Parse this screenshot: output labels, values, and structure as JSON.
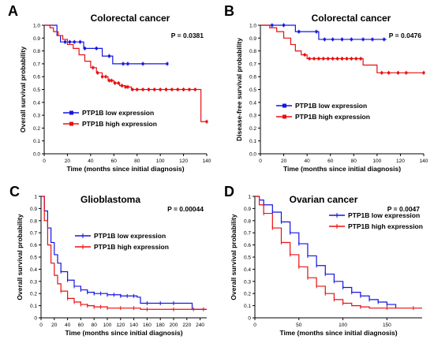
{
  "chart_data": [
    {
      "type": "line",
      "panel": "A",
      "title": "Colorectal cancer",
      "pvalue": "P = 0.0381",
      "xlabel": "Time (months since initial diagnosis)",
      "ylabel": "Overall survival probability",
      "xlim": [
        0,
        140
      ],
      "ylim": [
        0,
        1
      ],
      "xticks": [
        "0",
        "20",
        "40",
        "60",
        "80",
        "100",
        "120",
        "140"
      ],
      "yticks": [
        "0.0",
        "0.1",
        "0.2",
        "0.3",
        "0.4",
        "0.5",
        "0.6",
        "0.7",
        "0.8",
        "0.9",
        "1.0"
      ],
      "legend_position": "lower-left",
      "series": [
        {
          "name": "PTP1B low expression",
          "color": "#1515e0",
          "x": [
            0,
            6,
            11,
            14,
            30,
            34,
            50,
            56,
            59,
            70,
            85,
            106
          ],
          "y": [
            1.0,
            1.0,
            0.92,
            0.87,
            0.87,
            0.82,
            0.76,
            0.76,
            0.7,
            0.7,
            0.7,
            0.7
          ],
          "censor": [
            18,
            22,
            26,
            31,
            35,
            45,
            56,
            68,
            72,
            85,
            106
          ]
        },
        {
          "name": "PTP1B high expression",
          "color": "#e81010",
          "x": [
            0,
            5,
            8,
            12,
            16,
            20,
            25,
            30,
            35,
            40,
            45,
            50,
            55,
            60,
            65,
            70,
            75,
            80,
            90,
            100,
            110,
            120,
            133,
            135,
            140
          ],
          "y": [
            1.0,
            0.98,
            0.95,
            0.92,
            0.89,
            0.85,
            0.82,
            0.77,
            0.72,
            0.67,
            0.63,
            0.6,
            0.57,
            0.55,
            0.53,
            0.52,
            0.5,
            0.5,
            0.5,
            0.5,
            0.5,
            0.5,
            0.5,
            0.25,
            0.25
          ],
          "censor": [
            42,
            46,
            50,
            53,
            56,
            58,
            61,
            64,
            67,
            70,
            72,
            76,
            80,
            85,
            90,
            95,
            100,
            105,
            110,
            115,
            120,
            125,
            130,
            140
          ]
        }
      ]
    },
    {
      "type": "line",
      "panel": "B",
      "title": "Colorectal cancer",
      "pvalue": "P = 0.0476",
      "xlabel": "Time (months since initial diagnosis)",
      "ylabel": "Disease-free survival probability",
      "xlim": [
        0,
        140
      ],
      "ylim": [
        0,
        1
      ],
      "xticks": [
        "0",
        "20",
        "40",
        "60",
        "80",
        "100",
        "120",
        "140"
      ],
      "yticks": [
        "0.0",
        "0.1",
        "0.2",
        "0.3",
        "0.4",
        "0.5",
        "0.6",
        "0.7",
        "0.8",
        "0.9",
        "1.0"
      ],
      "legend_position": "lower-left",
      "series": [
        {
          "name": "PTP1B low expression",
          "color": "#1515e0",
          "x": [
            0,
            14,
            30,
            34,
            50,
            108
          ],
          "y": [
            1.0,
            1.0,
            0.95,
            0.95,
            0.89,
            0.89
          ],
          "censor": [
            10,
            20,
            33,
            48,
            55,
            62,
            70,
            78,
            88,
            96,
            106
          ]
        },
        {
          "name": "PTP1B high expression",
          "color": "#e81010",
          "x": [
            0,
            8,
            14,
            20,
            26,
            30,
            35,
            40,
            60,
            86,
            88,
            96,
            100,
            140
          ],
          "y": [
            1.0,
            0.98,
            0.95,
            0.9,
            0.85,
            0.8,
            0.77,
            0.74,
            0.74,
            0.74,
            0.69,
            0.69,
            0.63,
            0.63
          ],
          "censor": [
            38,
            42,
            46,
            50,
            54,
            58,
            62,
            66,
            70,
            74,
            78,
            82,
            86,
            104,
            110,
            118,
            125,
            140
          ]
        }
      ]
    },
    {
      "type": "line",
      "panel": "C",
      "title": "Glioblastoma",
      "pvalue": "P = 0.00044",
      "xlabel": "Time (months since initial diagnosis)",
      "ylabel": "Overall survival probability",
      "xlim": [
        0,
        250
      ],
      "ylim": [
        0,
        1
      ],
      "xticks": [
        "0",
        "20",
        "40",
        "60",
        "80",
        "100",
        "120",
        "140",
        "160",
        "180",
        "200",
        "220",
        "240"
      ],
      "yticks": [
        "0",
        "0.1",
        "0.2",
        "0.3",
        "0.4",
        "0.5",
        "0.6",
        "0.7",
        "0.8",
        "0.9",
        "1"
      ],
      "legend_position": "center-right",
      "series": [
        {
          "name": "PTP1B low expression",
          "color": "#1515e0",
          "x": [
            0,
            5,
            10,
            15,
            20,
            25,
            30,
            40,
            50,
            60,
            70,
            80,
            100,
            120,
            145,
            150,
            225,
            228,
            250
          ],
          "y": [
            1.0,
            0.88,
            0.74,
            0.62,
            0.52,
            0.45,
            0.38,
            0.31,
            0.26,
            0.23,
            0.21,
            0.2,
            0.19,
            0.18,
            0.17,
            0.12,
            0.12,
            0.07,
            0.07
          ],
          "censor": [
            30,
            40,
            50,
            60,
            70,
            80,
            90,
            100,
            110,
            120,
            130,
            140,
            160,
            180,
            200
          ]
        },
        {
          "name": "PTP1B high expression",
          "color": "#e81010",
          "x": [
            0,
            5,
            10,
            15,
            20,
            25,
            30,
            40,
            50,
            60,
            70,
            80,
            100,
            150,
            250
          ],
          "y": [
            1.0,
            0.8,
            0.6,
            0.45,
            0.35,
            0.28,
            0.22,
            0.16,
            0.13,
            0.11,
            0.1,
            0.09,
            0.08,
            0.07,
            0.07
          ],
          "censor": [
            30,
            40,
            50,
            60,
            70,
            80,
            90,
            100,
            120,
            140,
            160,
            200,
            230,
            245
          ]
        }
      ]
    },
    {
      "type": "line",
      "panel": "D",
      "title": "Ovarian cancer",
      "pvalue": "P = 0.0047",
      "xlabel": "Time (months since initial diagnosis)",
      "ylabel": "Overall survival probability",
      "xlim": [
        0,
        190
      ],
      "ylim": [
        0,
        1
      ],
      "xticks": [
        "0",
        "50",
        "100",
        "150"
      ],
      "yticks": [
        "0",
        "0.1",
        "0.2",
        "0.3",
        "0.4",
        "0.5",
        "0.6",
        "0.7",
        "0.8",
        "0.9",
        "1"
      ],
      "legend_position": "top-right",
      "series": [
        {
          "name": "PTP1B low expression",
          "color": "#1515e0",
          "x": [
            0,
            5,
            10,
            20,
            30,
            40,
            50,
            60,
            70,
            80,
            90,
            100,
            110,
            120,
            130,
            140,
            150,
            160
          ],
          "y": [
            1.0,
            0.97,
            0.93,
            0.87,
            0.79,
            0.7,
            0.61,
            0.51,
            0.43,
            0.36,
            0.3,
            0.25,
            0.21,
            0.18,
            0.15,
            0.13,
            0.11,
            0.08
          ],
          "censor": [
            10,
            20,
            30,
            40,
            50,
            60,
            70,
            80,
            90,
            100,
            110,
            120,
            130,
            140,
            150
          ]
        },
        {
          "name": "PTP1B high expression",
          "color": "#e81010",
          "x": [
            0,
            5,
            10,
            20,
            30,
            40,
            50,
            60,
            70,
            80,
            90,
            100,
            110,
            120,
            130,
            190
          ],
          "y": [
            1.0,
            0.93,
            0.86,
            0.74,
            0.62,
            0.52,
            0.42,
            0.33,
            0.26,
            0.2,
            0.15,
            0.12,
            0.1,
            0.09,
            0.08,
            0.08
          ],
          "censor": [
            10,
            20,
            30,
            40,
            50,
            60,
            70,
            80,
            90,
            100,
            120,
            150,
            180
          ]
        }
      ]
    }
  ]
}
